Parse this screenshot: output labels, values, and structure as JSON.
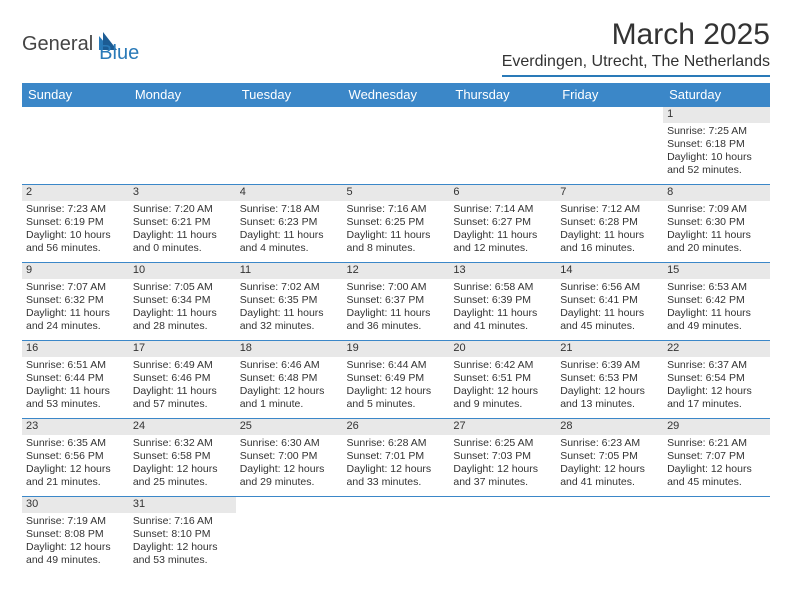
{
  "logo": {
    "text1": "General",
    "text2": "Blue"
  },
  "title": "March 2025",
  "subtitle": "Everdingen, Utrecht, The Netherlands",
  "colors": {
    "brand": "#3b87c8",
    "daynum_bg": "#e8e8e8",
    "text": "#333333"
  },
  "weekdays": [
    "Sunday",
    "Monday",
    "Tuesday",
    "Wednesday",
    "Thursday",
    "Friday",
    "Saturday"
  ],
  "weeks": [
    [
      null,
      null,
      null,
      null,
      null,
      null,
      {
        "n": "1",
        "sr": "7:25 AM",
        "ss": "6:18 PM",
        "dl": "10 hours and 52 minutes."
      }
    ],
    [
      {
        "n": "2",
        "sr": "7:23 AM",
        "ss": "6:19 PM",
        "dl": "10 hours and 56 minutes."
      },
      {
        "n": "3",
        "sr": "7:20 AM",
        "ss": "6:21 PM",
        "dl": "11 hours and 0 minutes."
      },
      {
        "n": "4",
        "sr": "7:18 AM",
        "ss": "6:23 PM",
        "dl": "11 hours and 4 minutes."
      },
      {
        "n": "5",
        "sr": "7:16 AM",
        "ss": "6:25 PM",
        "dl": "11 hours and 8 minutes."
      },
      {
        "n": "6",
        "sr": "7:14 AM",
        "ss": "6:27 PM",
        "dl": "11 hours and 12 minutes."
      },
      {
        "n": "7",
        "sr": "7:12 AM",
        "ss": "6:28 PM",
        "dl": "11 hours and 16 minutes."
      },
      {
        "n": "8",
        "sr": "7:09 AM",
        "ss": "6:30 PM",
        "dl": "11 hours and 20 minutes."
      }
    ],
    [
      {
        "n": "9",
        "sr": "7:07 AM",
        "ss": "6:32 PM",
        "dl": "11 hours and 24 minutes."
      },
      {
        "n": "10",
        "sr": "7:05 AM",
        "ss": "6:34 PM",
        "dl": "11 hours and 28 minutes."
      },
      {
        "n": "11",
        "sr": "7:02 AM",
        "ss": "6:35 PM",
        "dl": "11 hours and 32 minutes."
      },
      {
        "n": "12",
        "sr": "7:00 AM",
        "ss": "6:37 PM",
        "dl": "11 hours and 36 minutes."
      },
      {
        "n": "13",
        "sr": "6:58 AM",
        "ss": "6:39 PM",
        "dl": "11 hours and 41 minutes."
      },
      {
        "n": "14",
        "sr": "6:56 AM",
        "ss": "6:41 PM",
        "dl": "11 hours and 45 minutes."
      },
      {
        "n": "15",
        "sr": "6:53 AM",
        "ss": "6:42 PM",
        "dl": "11 hours and 49 minutes."
      }
    ],
    [
      {
        "n": "16",
        "sr": "6:51 AM",
        "ss": "6:44 PM",
        "dl": "11 hours and 53 minutes."
      },
      {
        "n": "17",
        "sr": "6:49 AM",
        "ss": "6:46 PM",
        "dl": "11 hours and 57 minutes."
      },
      {
        "n": "18",
        "sr": "6:46 AM",
        "ss": "6:48 PM",
        "dl": "12 hours and 1 minute."
      },
      {
        "n": "19",
        "sr": "6:44 AM",
        "ss": "6:49 PM",
        "dl": "12 hours and 5 minutes."
      },
      {
        "n": "20",
        "sr": "6:42 AM",
        "ss": "6:51 PM",
        "dl": "12 hours and 9 minutes."
      },
      {
        "n": "21",
        "sr": "6:39 AM",
        "ss": "6:53 PM",
        "dl": "12 hours and 13 minutes."
      },
      {
        "n": "22",
        "sr": "6:37 AM",
        "ss": "6:54 PM",
        "dl": "12 hours and 17 minutes."
      }
    ],
    [
      {
        "n": "23",
        "sr": "6:35 AM",
        "ss": "6:56 PM",
        "dl": "12 hours and 21 minutes."
      },
      {
        "n": "24",
        "sr": "6:32 AM",
        "ss": "6:58 PM",
        "dl": "12 hours and 25 minutes."
      },
      {
        "n": "25",
        "sr": "6:30 AM",
        "ss": "7:00 PM",
        "dl": "12 hours and 29 minutes."
      },
      {
        "n": "26",
        "sr": "6:28 AM",
        "ss": "7:01 PM",
        "dl": "12 hours and 33 minutes."
      },
      {
        "n": "27",
        "sr": "6:25 AM",
        "ss": "7:03 PM",
        "dl": "12 hours and 37 minutes."
      },
      {
        "n": "28",
        "sr": "6:23 AM",
        "ss": "7:05 PM",
        "dl": "12 hours and 41 minutes."
      },
      {
        "n": "29",
        "sr": "6:21 AM",
        "ss": "7:07 PM",
        "dl": "12 hours and 45 minutes."
      }
    ],
    [
      {
        "n": "30",
        "sr": "7:19 AM",
        "ss": "8:08 PM",
        "dl": "12 hours and 49 minutes."
      },
      {
        "n": "31",
        "sr": "7:16 AM",
        "ss": "8:10 PM",
        "dl": "12 hours and 53 minutes."
      },
      null,
      null,
      null,
      null,
      null
    ]
  ],
  "labels": {
    "sunrise": "Sunrise:",
    "sunset": "Sunset:",
    "daylight": "Daylight:"
  }
}
